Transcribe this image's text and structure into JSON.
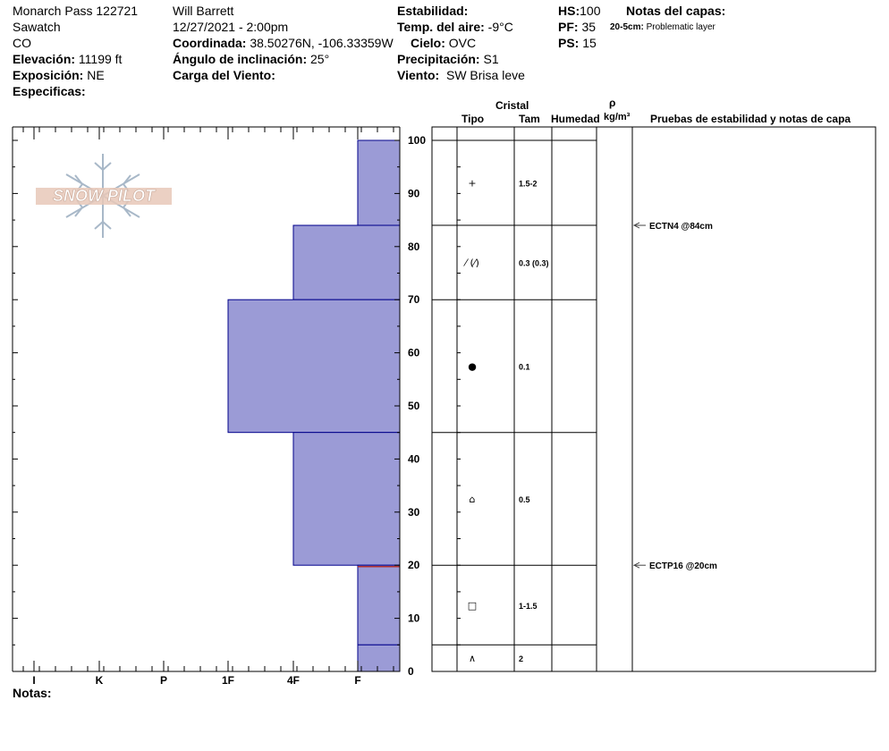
{
  "header": {
    "location": "Monarch Pass 122721",
    "range": "Sawatch",
    "state": "CO",
    "elevation_label": "Elevación:",
    "elevation": "11199 ft",
    "aspect_label": "Exposición:",
    "aspect": "NE",
    "specifics_label": "Especificas:",
    "observer": "Will  Barrett",
    "datetime": "12/27/2021 - 2:00pm",
    "coord_label": "Coordinada:",
    "coord": "38.50276N, -106.33359W",
    "slope_label": "Ángulo de inclinación:",
    "slope": "25°",
    "wind_load_label": "Carga del Viento:",
    "stability_label": "Estabilidad:",
    "air_temp_label": "Temp. del aire:",
    "air_temp": "-9°C",
    "sky_label": "Cielo:",
    "sky": "OVC",
    "precip_label": "Precipitación:",
    "precip": "S1",
    "wind_label": "Viento:",
    "wind": "SW Brisa leve",
    "hs_label": "HS:",
    "hs": "100",
    "pf_label": "PF:",
    "pf": "35",
    "ps_label": "PS:",
    "ps": "15",
    "layer_notes_label": "Notas del capas:",
    "layer_note_range": "20-5cm:",
    "layer_note_text": "Problematic layer"
  },
  "logo": {
    "text": "SNOW PILOT"
  },
  "columns": {
    "crystal": "Cristal",
    "type": "Tipo",
    "size": "Tam",
    "moisture": "Humedad",
    "rho": "ρ",
    "density_unit": "kg/m³",
    "tests": "Pruebas de estabilidad y notas de capa"
  },
  "notes_label": "Notas:",
  "chart_data": {
    "type": "bar",
    "title": "",
    "xlabel": "",
    "ylabel": "",
    "ylim": [
      0,
      100
    ],
    "y_ticks": [
      0,
      10,
      20,
      30,
      40,
      50,
      60,
      70,
      80,
      90,
      100
    ],
    "hardness_scale": [
      "I",
      "K",
      "P",
      "1F",
      "4F",
      "F"
    ],
    "hardness_scale_values": [
      6,
      5,
      4,
      3,
      2,
      1
    ],
    "layers": [
      {
        "bottom": 84,
        "top": 100,
        "hardness": "F",
        "hardness_value": 1
      },
      {
        "bottom": 70,
        "top": 84,
        "hardness": "4F",
        "hardness_value": 2
      },
      {
        "bottom": 45,
        "top": 70,
        "hardness": "1F",
        "hardness_value": 3
      },
      {
        "bottom": 20,
        "top": 45,
        "hardness": "4F",
        "hardness_value": 2
      },
      {
        "bottom": 5,
        "top": 20,
        "hardness": "F",
        "hardness_value": 1
      },
      {
        "bottom": 0,
        "top": 5,
        "hardness": "F",
        "hardness_value": 1
      }
    ],
    "layer_boundaries": [
      100,
      84,
      70,
      45,
      20,
      5,
      0
    ],
    "problem_layer_depth": 20,
    "layer_colors": {
      "fill": "#9b9bd6",
      "edge": "#00008b",
      "problem": "#b03030"
    },
    "crystals": [
      {
        "bottom": 84,
        "top": 100,
        "symbol": "+",
        "size": "1.5-2"
      },
      {
        "bottom": 70,
        "top": 84,
        "symbol": "⁄ (⁄)",
        "size": "0.3 (0.3)"
      },
      {
        "bottom": 45,
        "top": 70,
        "symbol": "●",
        "size": "0.1"
      },
      {
        "bottom": 20,
        "top": 45,
        "symbol": "⌂",
        "size": "0.5"
      },
      {
        "bottom": 5,
        "top": 20,
        "symbol": "□",
        "size": "1-1.5"
      },
      {
        "bottom": 0,
        "top": 5,
        "symbol": "∧",
        "size": "2"
      }
    ],
    "tests": [
      {
        "depth": 84,
        "label": "ECTN4 @84cm"
      },
      {
        "depth": 20,
        "label": "ECTP16 @20cm"
      }
    ]
  }
}
